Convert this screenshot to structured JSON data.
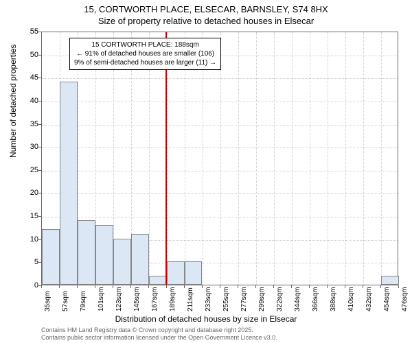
{
  "chart": {
    "type": "histogram",
    "title_line1": "15, CORTWORTH PLACE, ELSECAR, BARNSLEY, S74 8HX",
    "title_line2": "Size of property relative to detached houses in Elsecar",
    "y_axis_label": "Number of detached properties",
    "x_axis_label": "Distribution of detached houses by size in Elsecar",
    "ylim": [
      0,
      55
    ],
    "ytick_step": 5,
    "yticks": [
      0,
      5,
      10,
      15,
      20,
      25,
      30,
      35,
      40,
      45,
      50,
      55
    ],
    "xticks": [
      "35sqm",
      "57sqm",
      "79sqm",
      "101sqm",
      "123sqm",
      "145sqm",
      "167sqm",
      "189sqm",
      "211sqm",
      "233sqm",
      "255sqm",
      "277sqm",
      "299sqm",
      "322sqm",
      "344sqm",
      "366sqm",
      "388sqm",
      "410sqm",
      "432sqm",
      "454sqm",
      "476sqm"
    ],
    "xlim": [
      35,
      476
    ],
    "bars": [
      {
        "x_start": 35,
        "x_end": 57,
        "value": 12
      },
      {
        "x_start": 57,
        "x_end": 79,
        "value": 44
      },
      {
        "x_start": 79,
        "x_end": 101,
        "value": 14
      },
      {
        "x_start": 101,
        "x_end": 123,
        "value": 13
      },
      {
        "x_start": 123,
        "x_end": 145,
        "value": 10
      },
      {
        "x_start": 145,
        "x_end": 167,
        "value": 11
      },
      {
        "x_start": 167,
        "x_end": 189,
        "value": 2
      },
      {
        "x_start": 189,
        "x_end": 211,
        "value": 5
      },
      {
        "x_start": 211,
        "x_end": 233,
        "value": 5
      },
      {
        "x_start": 454,
        "x_end": 476,
        "value": 2
      }
    ],
    "bar_fill_color": "#dbe7f5",
    "bar_border_color": "#888888",
    "background_color": "#ffffff",
    "grid_color": "#cccccc",
    "axis_color": "#666666",
    "marker": {
      "x_value": 188,
      "color": "#cc0000"
    },
    "annotation": {
      "line1": "15 CORTWORTH PLACE: 188sqm",
      "line2": "← 91% of detached houses are smaller (106)",
      "line3": "9% of semi-detached houses are larger (11) →"
    },
    "footer_line1": "Contains HM Land Registry data © Crown copyright and database right 2025.",
    "footer_line2": "Contains public sector information licensed under the Open Government Licence v3.0."
  }
}
